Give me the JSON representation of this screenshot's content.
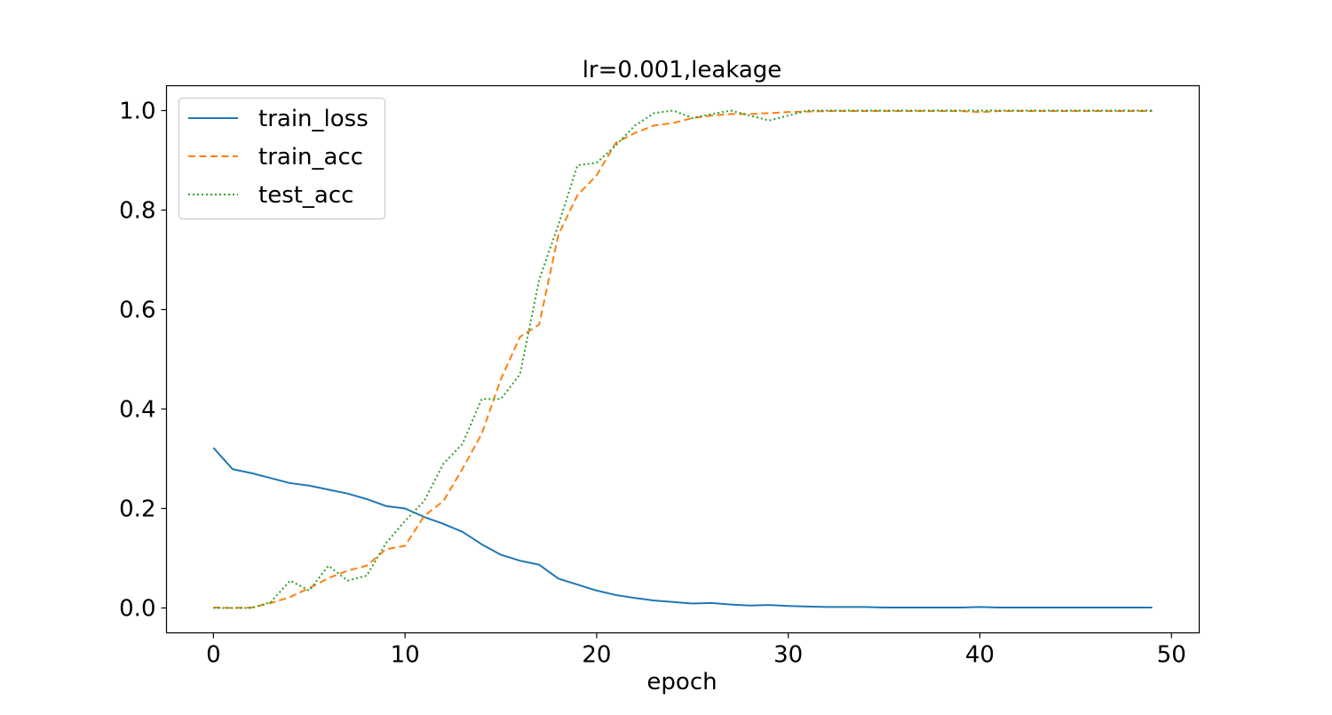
{
  "chart_data": {
    "type": "line",
    "title": "lr=0.001,leakage",
    "xlabel": "epoch",
    "ylabel": "",
    "xlim": [
      -2.45,
      51.45
    ],
    "ylim": [
      -0.05,
      1.05
    ],
    "xticks": [
      0,
      10,
      20,
      30,
      40,
      50
    ],
    "xtick_labels": [
      "0",
      "10",
      "20",
      "30",
      "40",
      "50"
    ],
    "yticks": [
      0.0,
      0.2,
      0.4,
      0.6,
      0.8,
      1.0
    ],
    "ytick_labels": [
      "0.0",
      "0.2",
      "0.4",
      "0.6",
      "0.8",
      "1.0"
    ],
    "grid": false,
    "legend_position": "top-left",
    "x": [
      0,
      1,
      2,
      3,
      4,
      5,
      6,
      7,
      8,
      9,
      10,
      11,
      12,
      13,
      14,
      15,
      16,
      17,
      18,
      19,
      20,
      21,
      22,
      23,
      24,
      25,
      26,
      27,
      28,
      29,
      30,
      31,
      32,
      33,
      34,
      35,
      36,
      37,
      38,
      39,
      40,
      41,
      42,
      43,
      44,
      45,
      46,
      47,
      48,
      49
    ],
    "series": [
      {
        "name": "train_loss",
        "color": "#1f77b4",
        "style": "solid",
        "values": [
          0.322,
          0.279,
          0.271,
          0.261,
          0.251,
          0.246,
          0.238,
          0.23,
          0.219,
          0.205,
          0.2,
          0.183,
          0.169,
          0.153,
          0.128,
          0.107,
          0.095,
          0.087,
          0.059,
          0.047,
          0.035,
          0.026,
          0.02,
          0.015,
          0.012,
          0.009,
          0.01,
          0.007,
          0.005,
          0.006,
          0.004,
          0.003,
          0.002,
          0.002,
          0.002,
          0.001,
          0.001,
          0.001,
          0.001,
          0.001,
          0.002,
          0.001,
          0.001,
          0.001,
          0.001,
          0.001,
          0.001,
          0.001,
          0.001,
          0.001
        ]
      },
      {
        "name": "train_acc",
        "color": "#ff7f0e",
        "style": "dashed",
        "values": [
          0.001,
          0.0,
          0.001,
          0.01,
          0.022,
          0.04,
          0.06,
          0.075,
          0.085,
          0.118,
          0.125,
          0.185,
          0.215,
          0.28,
          0.35,
          0.46,
          0.545,
          0.57,
          0.75,
          0.83,
          0.87,
          0.935,
          0.955,
          0.97,
          0.975,
          0.985,
          0.99,
          0.993,
          0.993,
          0.995,
          0.997,
          0.998,
          0.999,
          0.999,
          0.999,
          0.999,
          0.999,
          0.999,
          0.999,
          0.999,
          0.997,
          0.999,
          0.999,
          0.999,
          0.999,
          0.999,
          0.999,
          0.999,
          0.999,
          0.999
        ]
      },
      {
        "name": "test_acc",
        "color": "#2ca02c",
        "style": "dotted",
        "values": [
          0.0,
          0.0,
          0.0,
          0.012,
          0.055,
          0.035,
          0.085,
          0.055,
          0.065,
          0.13,
          0.175,
          0.215,
          0.29,
          0.33,
          0.42,
          0.42,
          0.47,
          0.66,
          0.77,
          0.89,
          0.895,
          0.93,
          0.97,
          0.995,
          1.0,
          0.985,
          0.993,
          1.0,
          0.99,
          0.98,
          0.99,
          1.0,
          1.0,
          1.0,
          1.0,
          1.0,
          1.0,
          1.0,
          1.0,
          1.0,
          1.0,
          1.0,
          1.0,
          1.0,
          1.0,
          1.0,
          1.0,
          1.0,
          1.0,
          1.0
        ]
      }
    ]
  }
}
